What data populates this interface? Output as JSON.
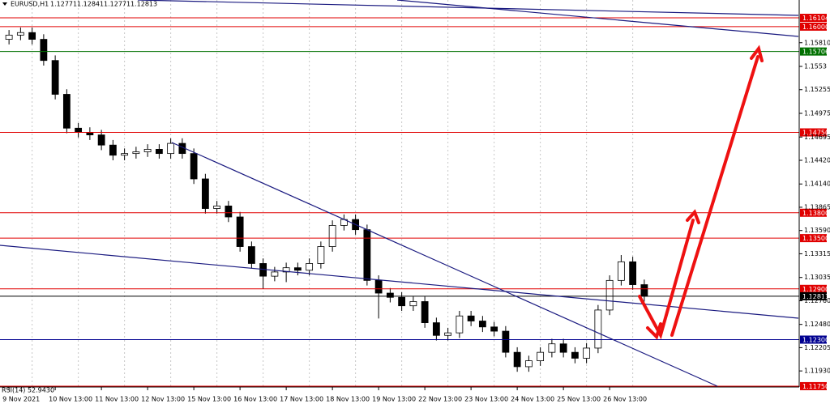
{
  "chart_data": {
    "type": "candlestick",
    "symbol": "EURUSD,H1",
    "header_ohlc": [
      1.12771,
      1.12841,
      1.12771,
      1.12813
    ],
    "indicator_label": "RSI(14) 52.9430",
    "grid": true,
    "up_color": "#ffffff",
    "down_color": "#000000",
    "ylim": [
      1.1174,
      1.16315
    ],
    "yticks": [
      {
        "value": 1.1581,
        "label": "1.15810"
      },
      1.1553,
      1.15255,
      1.14975,
      1.14695,
      {
        "value": 1.1442,
        "label": "1.14420"
      },
      {
        "value": 1.1414,
        "label": "1.14140"
      },
      1.13865,
      {
        "value": 1.1359,
        "label": "1.13590"
      },
      1.13315,
      1.13035,
      {
        "value": 1.1276,
        "label": "1.12760"
      },
      {
        "value": 1.1248,
        "label": "1.12480"
      },
      1.12205,
      {
        "value": 1.1193,
        "label": "1.11930"
      }
    ],
    "levels": [
      {
        "value": 1.16104,
        "label": "1.16104",
        "color": "#e00000"
      },
      {
        "value": 1.16,
        "label": "1.16000",
        "color": "#e00000"
      },
      {
        "value": 1.15706,
        "label": "1.15706",
        "color": "#007000"
      },
      {
        "value": 1.1475,
        "label": "1.14750",
        "color": "#e00000"
      },
      {
        "value": 1.138,
        "label": "1.13800",
        "color": "#e00000"
      },
      {
        "value": 1.135,
        "label": "1.13500",
        "color": "#e00000"
      },
      {
        "value": 1.129,
        "label": "1.12900",
        "color": "#e00000"
      },
      {
        "value": 1.12813,
        "label": "1.12813",
        "color": "#000000"
      },
      {
        "value": 1.123,
        "label": "1.12300",
        "color": "#000090"
      },
      {
        "value": 1.1175,
        "label": "1.11750",
        "color": "#e00000"
      }
    ],
    "categories": [
      "9 Nov 2021",
      null,
      null,
      null,
      "10 Nov 13:00",
      null,
      null,
      null,
      "11 Nov 13:00",
      null,
      null,
      null,
      "12 Nov 13:00",
      null,
      null,
      null,
      "15 Nov 13:00",
      null,
      null,
      null,
      "16 Nov 13:00",
      null,
      null,
      null,
      "17 Nov 13:00",
      null,
      null,
      null,
      "18 Nov 13:00",
      null,
      null,
      null,
      "19 Nov 13:00",
      null,
      null,
      null,
      "22 Nov 13:00",
      null,
      null,
      null,
      "23 Nov 13:00",
      null,
      null,
      null,
      "24 Nov 13:00",
      null,
      null,
      null,
      "25 Nov 13:00",
      null,
      null,
      null,
      "26 Nov 13:00",
      null,
      null,
      null
    ],
    "open": [
      1.1585,
      1.159,
      1.1593,
      1.1585,
      1.156,
      1.152,
      1.148,
      1.1475,
      1.1472,
      1.146,
      1.1448,
      1.145,
      1.1452,
      1.1455,
      1.145,
      1.1462,
      1.145,
      1.142,
      1.1385,
      1.1388,
      1.1375,
      1.134,
      1.132,
      1.1305,
      1.131,
      1.1315,
      1.1312,
      1.132,
      1.134,
      1.1365,
      1.1372,
      1.136,
      1.13,
      1.1285,
      1.128,
      1.127,
      1.1275,
      1.125,
      1.1235,
      1.1238,
      1.1258,
      1.1252,
      1.1245,
      1.124,
      1.1215,
      1.1198,
      1.1205,
      1.1215,
      1.1225,
      1.1215,
      1.1208,
      1.122,
      1.1265,
      1.13,
      1.1322,
      1.1295
    ],
    "high": [
      1.1596,
      1.1599,
      1.1599,
      1.1591,
      1.1566,
      1.1526,
      1.1486,
      1.1481,
      1.1478,
      1.1466,
      1.1456,
      1.1458,
      1.1461,
      1.1461,
      1.1468,
      1.1468,
      1.1456,
      1.1426,
      1.1394,
      1.1394,
      1.1381,
      1.1346,
      1.1326,
      1.1316,
      1.1321,
      1.1321,
      1.1326,
      1.1346,
      1.1371,
      1.1378,
      1.1378,
      1.1366,
      1.1306,
      1.1291,
      1.1286,
      1.1281,
      1.1281,
      1.1256,
      1.1244,
      1.1264,
      1.1264,
      1.1258,
      1.1251,
      1.1246,
      1.1221,
      1.1211,
      1.1221,
      1.1231,
      1.1231,
      1.1221,
      1.1226,
      1.1271,
      1.1306,
      1.133,
      1.1328,
      1.1301
    ],
    "low": [
      1.1579,
      1.1584,
      1.1579,
      1.1554,
      1.1514,
      1.1474,
      1.1469,
      1.1466,
      1.1454,
      1.1442,
      1.1442,
      1.1444,
      1.1446,
      1.1444,
      1.1444,
      1.1444,
      1.1414,
      1.1379,
      1.1379,
      1.1369,
      1.1334,
      1.1314,
      1.129,
      1.1299,
      1.1298,
      1.1306,
      1.1306,
      1.1314,
      1.1334,
      1.1359,
      1.1354,
      1.1294,
      1.1255,
      1.1274,
      1.1264,
      1.1264,
      1.1244,
      1.1229,
      1.1229,
      1.1232,
      1.1246,
      1.1239,
      1.1234,
      1.1209,
      1.1192,
      1.1192,
      1.1199,
      1.1209,
      1.1209,
      1.1202,
      1.1202,
      1.1214,
      1.1259,
      1.1294,
      1.1289,
      1.1275
    ],
    "close": [
      1.159,
      1.1593,
      1.1585,
      1.156,
      1.152,
      1.148,
      1.1475,
      1.1472,
      1.146,
      1.1448,
      1.145,
      1.1452,
      1.1455,
      1.145,
      1.1462,
      1.145,
      1.142,
      1.1385,
      1.1388,
      1.1375,
      1.134,
      1.132,
      1.1305,
      1.131,
      1.1315,
      1.1312,
      1.132,
      1.134,
      1.1365,
      1.1372,
      1.136,
      1.13,
      1.1285,
      1.128,
      1.127,
      1.1275,
      1.125,
      1.1235,
      1.1238,
      1.1258,
      1.1252,
      1.1245,
      1.124,
      1.1215,
      1.1198,
      1.1205,
      1.1215,
      1.1225,
      1.1215,
      1.1208,
      1.122,
      1.1265,
      1.13,
      1.1322,
      1.1295,
      1.12813
    ]
  }
}
